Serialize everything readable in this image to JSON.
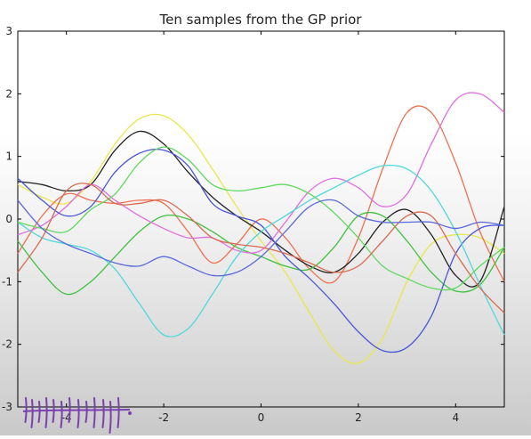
{
  "chart_data": {
    "type": "line",
    "title": "Ten samples from the GP prior",
    "xlabel": "",
    "ylabel": "",
    "xlim": [
      -5,
      5
    ],
    "ylim": [
      -3,
      3
    ],
    "xticks": [
      "-4",
      "-2",
      "0",
      "2",
      "4"
    ],
    "xtick_values": [
      -4,
      -2,
      0,
      2,
      4
    ],
    "yticks": [
      "3",
      "2",
      "1",
      "0",
      "-1",
      "-2",
      "-3"
    ],
    "ytick_values": [
      3,
      2,
      1,
      0,
      -1,
      -2,
      -3
    ],
    "grid": false,
    "legend": "none",
    "x": [
      -5,
      -4.5,
      -4,
      -3.5,
      -3,
      -2.5,
      -2,
      -1.5,
      -1,
      -0.5,
      0,
      0.5,
      1,
      1.5,
      2,
      2.5,
      3,
      3.5,
      4,
      4.5,
      5
    ],
    "series": [
      {
        "color": "#e8e84a",
        "values": [
          0.55,
          0.35,
          0.25,
          0.6,
          1.2,
          1.6,
          1.65,
          1.35,
          0.8,
          0.2,
          -0.35,
          -0.85,
          -1.5,
          -2.1,
          -2.3,
          -1.9,
          -1.0,
          -0.4,
          -0.25,
          -0.3,
          -0.55
        ]
      },
      {
        "color": "#f07050",
        "values": [
          -0.55,
          0.05,
          0.4,
          0.3,
          0.25,
          0.3,
          0.25,
          -0.2,
          -0.7,
          -0.4,
          0.0,
          -0.3,
          -0.8,
          -1.0,
          -0.3,
          0.8,
          1.7,
          1.7,
          0.9,
          -0.2,
          -1.0
        ]
      },
      {
        "color": "#222222",
        "values": [
          0.6,
          0.55,
          0.45,
          0.55,
          1.1,
          1.4,
          1.2,
          0.75,
          0.35,
          0.05,
          -0.2,
          -0.5,
          -0.75,
          -0.85,
          -0.55,
          -0.05,
          0.15,
          -0.25,
          -0.9,
          -1.0,
          0.2
        ]
      },
      {
        "color": "#40c040",
        "values": [
          -0.35,
          -0.85,
          -1.2,
          -1.0,
          -0.6,
          -0.2,
          0.05,
          0.0,
          -0.2,
          -0.45,
          -0.6,
          -0.75,
          -0.8,
          -0.45,
          0.05,
          0.05,
          -0.35,
          -0.85,
          -1.15,
          -1.05,
          -0.45
        ]
      },
      {
        "color": "#e070e0",
        "values": [
          -0.25,
          -0.1,
          0.2,
          0.55,
          0.3,
          0.05,
          -0.15,
          -0.3,
          -0.3,
          -0.5,
          -0.5,
          -0.05,
          0.45,
          0.65,
          0.5,
          0.2,
          0.4,
          1.2,
          1.9,
          2.0,
          1.7
        ]
      },
      {
        "color": "#4a56d8",
        "values": [
          0.65,
          0.3,
          0.05,
          0.2,
          0.75,
          1.05,
          1.1,
          0.85,
          0.25,
          0.05,
          -0.1,
          -0.6,
          -0.95,
          -1.35,
          -1.8,
          -2.1,
          -2.05,
          -1.55,
          -0.55,
          -0.15,
          -0.1
        ]
      },
      {
        "color": "#50d8d8",
        "values": [
          -0.05,
          -0.3,
          -0.4,
          -0.5,
          -0.8,
          -1.35,
          -1.85,
          -1.75,
          -1.2,
          -0.6,
          -0.2,
          0.05,
          0.3,
          0.5,
          0.7,
          0.85,
          0.8,
          0.45,
          -0.2,
          -1.05,
          -1.85
        ]
      },
      {
        "color": "#60d860",
        "values": [
          -0.05,
          -0.15,
          -0.2,
          0.15,
          0.4,
          0.9,
          1.15,
          0.95,
          0.55,
          0.45,
          0.5,
          0.55,
          0.4,
          0.1,
          -0.3,
          -0.75,
          -0.95,
          -1.1,
          -1.1,
          -0.75,
          -0.45
        ]
      },
      {
        "color": "#d86a50",
        "values": [
          -0.85,
          -0.3,
          0.45,
          0.55,
          0.25,
          0.25,
          0.3,
          0.05,
          -0.3,
          -0.4,
          -0.45,
          -0.55,
          -0.7,
          -0.85,
          -0.75,
          -0.35,
          0.05,
          0.05,
          -0.55,
          -1.1,
          -1.5
        ]
      },
      {
        "color": "#5c6ad8",
        "values": [
          0.3,
          -0.15,
          -0.4,
          -0.55,
          -0.7,
          -0.75,
          -0.6,
          -0.75,
          -0.9,
          -0.85,
          -0.6,
          -0.2,
          0.2,
          0.3,
          0.05,
          -0.05,
          -0.05,
          -0.05,
          -0.15,
          -0.05,
          -0.1
        ]
      }
    ]
  },
  "annotation": {
    "description_icon": "handwritten-tally-marks",
    "color": "#7a3fb0"
  }
}
